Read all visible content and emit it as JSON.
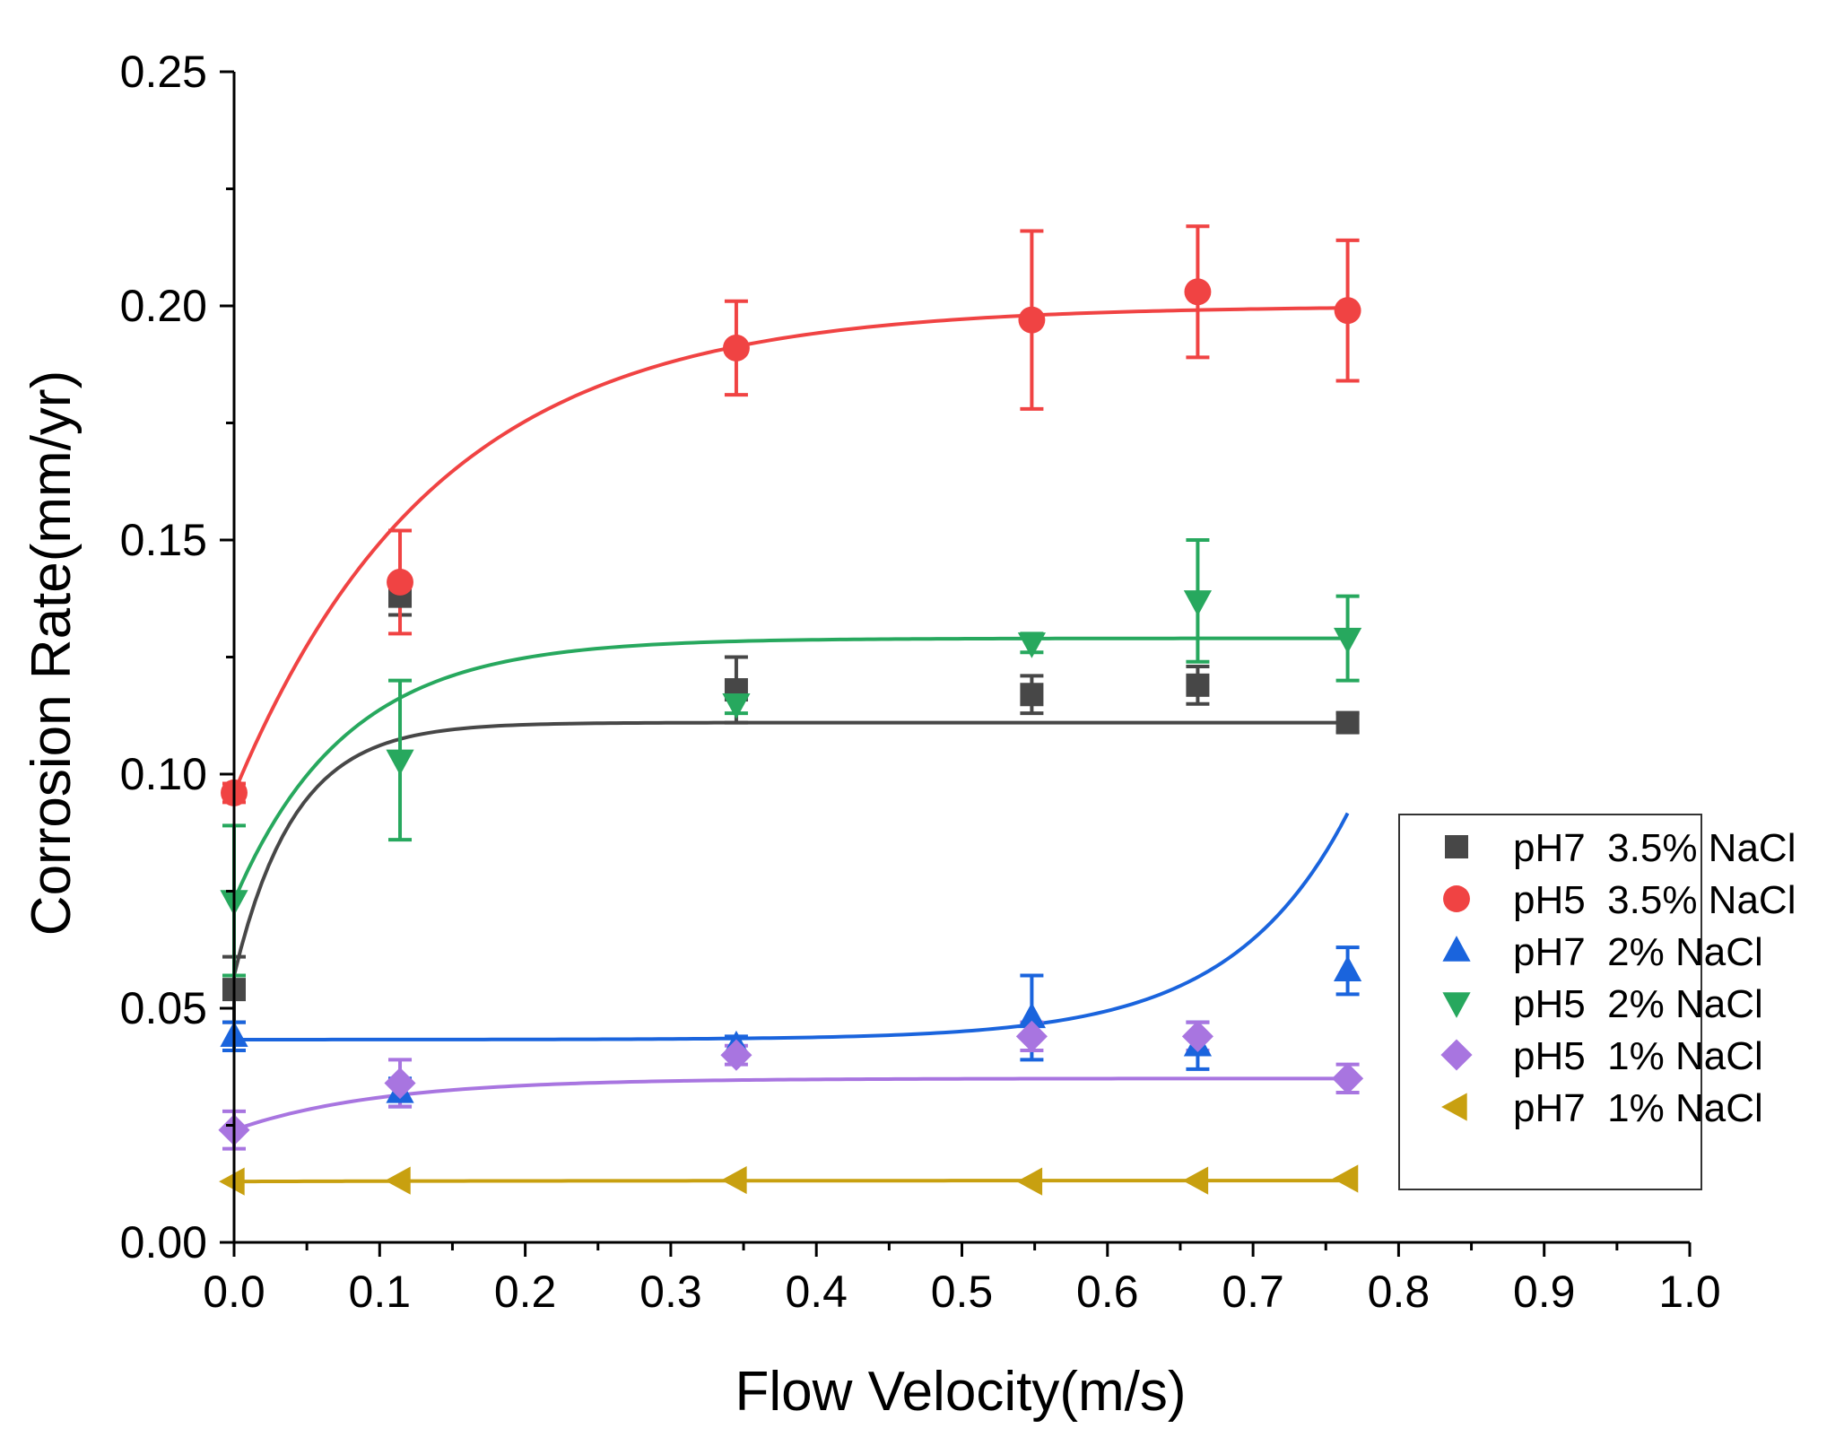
{
  "chart_data": {
    "type": "scatter",
    "title": "",
    "xlabel": "Flow Velocity(m/s)",
    "ylabel": "Corrosion Rate(mm/yr)",
    "xlim": [
      0.0,
      1.0
    ],
    "ylim": [
      0.0,
      0.25
    ],
    "x_ticks": [
      "0.0",
      "0.1",
      "0.2",
      "0.3",
      "0.4",
      "0.5",
      "0.6",
      "0.7",
      "0.8",
      "0.9",
      "1.0"
    ],
    "y_ticks": [
      "0.00",
      "0.05",
      "0.10",
      "0.15",
      "0.20",
      "0.25"
    ],
    "grid": false,
    "legend_position": "right",
    "x": [
      0.0,
      0.114,
      0.345,
      0.548,
      0.662,
      0.765
    ],
    "series": [
      {
        "name": "pH7  3.5% NaCl",
        "marker": "square",
        "color": "#474747",
        "values": [
          0.054,
          0.138,
          0.118,
          0.117,
          0.119,
          0.111
        ],
        "errors": [
          0.007,
          0.004,
          0.007,
          0.004,
          0.004,
          0.002
        ],
        "fit": {
          "a": 0.111,
          "b": 0.057,
          "k": 24
        }
      },
      {
        "name": "pH5  3.5% NaCl",
        "marker": "circle",
        "color": "#f04343",
        "values": [
          0.096,
          0.141,
          0.191,
          0.197,
          0.203,
          0.199
        ],
        "errors": [
          0.002,
          0.011,
          0.01,
          0.019,
          0.014,
          0.015
        ],
        "fit": {
          "a": 0.2,
          "b": 0.096,
          "k": 7.2
        }
      },
      {
        "name": "pH7  2% NaCl",
        "marker": "triangle-up",
        "color": "#1a64dd",
        "values": [
          0.044,
          0.032,
          0.042,
          0.048,
          0.042,
          0.058
        ],
        "errors": [
          0.003,
          0.003,
          0.002,
          0.009,
          0.005,
          0.005
        ],
        "fit": {
          "a": 0.0433,
          "c": 3.4e-06,
          "k": 12.5
        }
      },
      {
        "name": "pH5  2% NaCl",
        "marker": "triangle-down",
        "color": "#27a85e",
        "values": [
          0.073,
          0.103,
          0.115,
          0.128,
          0.137,
          0.129
        ],
        "errors": [
          0.016,
          0.017,
          0.002,
          0.002,
          0.013,
          0.009
        ],
        "fit": {
          "a": 0.129,
          "b": 0.073,
          "k": 13
        }
      },
      {
        "name": "pH5  1% NaCl",
        "marker": "diamond",
        "color": "#a875e0",
        "values": [
          0.024,
          0.034,
          0.04,
          0.044,
          0.044,
          0.035
        ],
        "errors": [
          0.004,
          0.005,
          0.002,
          0.003,
          0.003,
          0.003
        ],
        "fit": {
          "a": 0.035,
          "b": 0.024,
          "k": 10
        }
      },
      {
        "name": "pH7  1% NaCl",
        "marker": "triangle-left",
        "color": "#c8a010",
        "values": [
          0.013,
          0.0132,
          0.0133,
          0.013,
          0.0132,
          0.0136
        ],
        "errors": [
          0,
          0,
          0,
          0,
          0,
          0
        ],
        "fit": {
          "a": 0.0132,
          "b": 0.013,
          "k": 5
        }
      }
    ]
  }
}
